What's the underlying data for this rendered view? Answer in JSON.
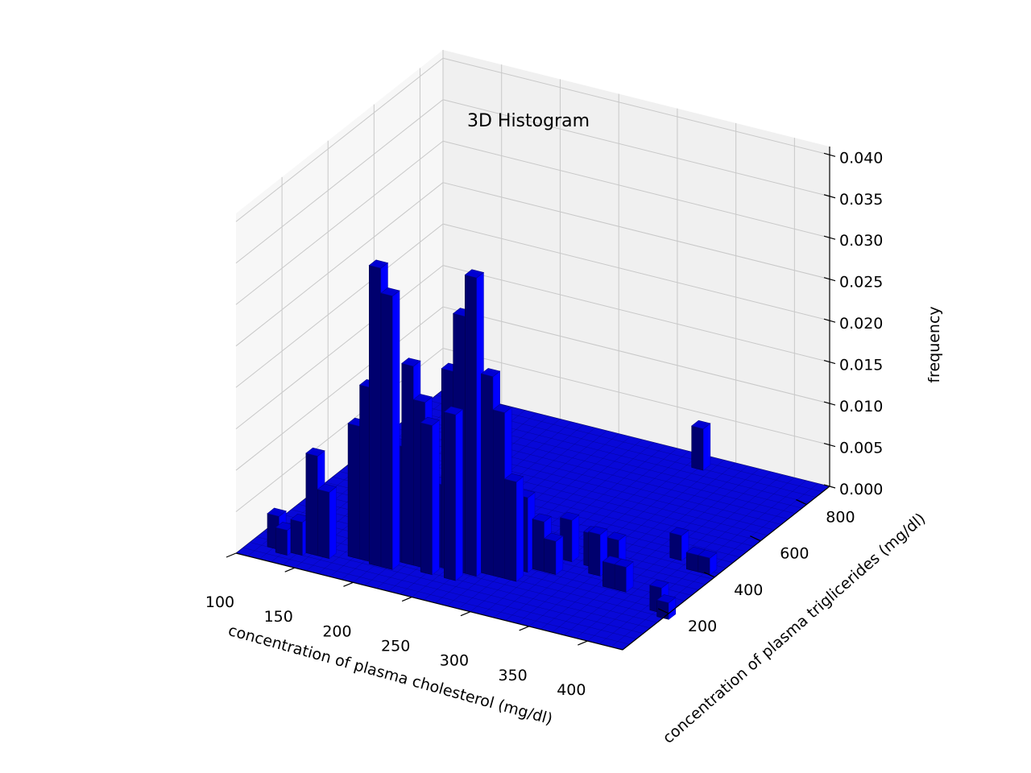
{
  "chart_data": {
    "type": "3d-bar",
    "title": "3D Histogram",
    "xlabel": "concentration of plasma cholesterol (mg/dl)",
    "ylabel": "concentration of plasma triglicerides (mg/dl)",
    "zlabel": "frequency",
    "xlim": [
      100,
      430
    ],
    "ylim": [
      0,
      900
    ],
    "zlim": [
      0,
      0.041
    ],
    "x_ticks": [
      100,
      150,
      200,
      250,
      300,
      350,
      400
    ],
    "y_ticks": [
      200,
      400,
      600,
      800
    ],
    "z_ticks": [
      "0.000",
      "0.005",
      "0.010",
      "0.015",
      "0.020",
      "0.025",
      "0.030",
      "0.035",
      "0.040"
    ],
    "grid": true,
    "bar_color": "#0000ff",
    "bars": [
      {
        "x": 120,
        "y": 75,
        "z": 0.004
      },
      {
        "x": 130,
        "y": 60,
        "z": 0.003
      },
      {
        "x": 140,
        "y": 75,
        "z": 0.004
      },
      {
        "x": 150,
        "y": 90,
        "z": 0.012
      },
      {
        "x": 160,
        "y": 90,
        "z": 0.008
      },
      {
        "x": 180,
        "y": 120,
        "z": 0.016
      },
      {
        "x": 190,
        "y": 120,
        "z": 0.021
      },
      {
        "x": 200,
        "y": 110,
        "z": 0.036
      },
      {
        "x": 200,
        "y": 150,
        "z": 0.012
      },
      {
        "x": 210,
        "y": 110,
        "z": 0.033
      },
      {
        "x": 210,
        "y": 150,
        "z": 0.014
      },
      {
        "x": 220,
        "y": 150,
        "z": 0.024
      },
      {
        "x": 230,
        "y": 150,
        "z": 0.02
      },
      {
        "x": 240,
        "y": 170,
        "z": 0.01
      },
      {
        "x": 240,
        "y": 130,
        "z": 0.018
      },
      {
        "x": 250,
        "y": 170,
        "z": 0.024
      },
      {
        "x": 260,
        "y": 170,
        "z": 0.031
      },
      {
        "x": 260,
        "y": 130,
        "z": 0.02
      },
      {
        "x": 270,
        "y": 170,
        "z": 0.036
      },
      {
        "x": 280,
        "y": 190,
        "z": 0.024
      },
      {
        "x": 290,
        "y": 190,
        "z": 0.02
      },
      {
        "x": 280,
        "y": 230,
        "z": 0.01
      },
      {
        "x": 300,
        "y": 190,
        "z": 0.012
      },
      {
        "x": 300,
        "y": 240,
        "z": 0.009
      },
      {
        "x": 310,
        "y": 260,
        "z": 0.006
      },
      {
        "x": 320,
        "y": 260,
        "z": 0.004
      },
      {
        "x": 320,
        "y": 330,
        "z": 0.005
      },
      {
        "x": 340,
        "y": 330,
        "z": 0.004
      },
      {
        "x": 350,
        "y": 300,
        "z": 0.005
      },
      {
        "x": 360,
        "y": 330,
        "z": 0.004
      },
      {
        "x": 370,
        "y": 260,
        "z": 0.003
      },
      {
        "x": 380,
        "y": 260,
        "z": 0.003
      },
      {
        "x": 390,
        "y": 450,
        "z": 0.003
      },
      {
        "x": 410,
        "y": 420,
        "z": 0.002
      },
      {
        "x": 420,
        "y": 420,
        "z": 0.002
      },
      {
        "x": 420,
        "y": 210,
        "z": 0.003
      },
      {
        "x": 430,
        "y": 190,
        "z": 0.002
      },
      {
        "x": 330,
        "y": 850,
        "z": 0.005
      }
    ]
  }
}
